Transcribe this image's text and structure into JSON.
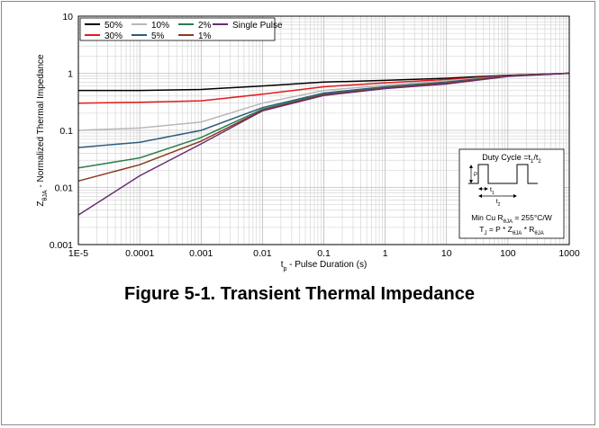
{
  "caption": "Figure 5-1. Transient Thermal Impedance",
  "chart_data": {
    "type": "line",
    "xscale": "log",
    "yscale": "log",
    "xlim": [
      1e-05,
      1000
    ],
    "ylim": [
      0.001,
      10
    ],
    "grid": true,
    "xlabel": {
      "main": "t",
      "sub": "p",
      "rest": " - Pulse Duration (s)"
    },
    "ylabel": {
      "main": "Z",
      "sub": "θJA",
      "rest": " - Normalized Thermal Impedance"
    },
    "x_ticks": [
      {
        "value": 1e-05,
        "label": "1E-5"
      },
      {
        "value": 0.0001,
        "label": "0.0001"
      },
      {
        "value": 0.001,
        "label": "0.001"
      },
      {
        "value": 0.01,
        "label": "0.01"
      },
      {
        "value": 0.1,
        "label": "0.1"
      },
      {
        "value": 1,
        "label": "1"
      },
      {
        "value": 10,
        "label": "10"
      },
      {
        "value": 100,
        "label": "100"
      },
      {
        "value": 1000,
        "label": "1000"
      }
    ],
    "y_ticks": [
      {
        "value": 10,
        "label": "10"
      },
      {
        "value": 1,
        "label": "1"
      },
      {
        "value": 0.1,
        "label": "0.1"
      },
      {
        "value": 0.01,
        "label": "0.01"
      },
      {
        "value": 0.001,
        "label": "0.001"
      }
    ],
    "legend_position": "top-left",
    "series": [
      {
        "name": "50%",
        "color": "#000000",
        "x": [
          1e-05,
          0.0001,
          0.001,
          0.01,
          0.1,
          1,
          10,
          100,
          1000
        ],
        "y": [
          0.5,
          0.5,
          0.52,
          0.6,
          0.7,
          0.75,
          0.82,
          0.92,
          1.0
        ]
      },
      {
        "name": "30%",
        "color": "#e41a1c",
        "x": [
          1e-05,
          0.0001,
          0.001,
          0.01,
          0.1,
          1,
          10,
          100,
          1000
        ],
        "y": [
          0.3,
          0.31,
          0.33,
          0.43,
          0.58,
          0.68,
          0.78,
          0.9,
          1.0
        ]
      },
      {
        "name": "10%",
        "color": "#b8b8b8",
        "x": [
          1e-05,
          0.0001,
          0.001,
          0.01,
          0.1,
          1,
          10,
          100,
          1000
        ],
        "y": [
          0.1,
          0.11,
          0.14,
          0.3,
          0.5,
          0.62,
          0.74,
          0.9,
          1.0
        ]
      },
      {
        "name": "5%",
        "color": "#2b5d7c",
        "x": [
          1e-05,
          0.0001,
          0.001,
          0.01,
          0.1,
          1,
          10,
          100,
          1000
        ],
        "y": [
          0.05,
          0.062,
          0.1,
          0.25,
          0.45,
          0.58,
          0.7,
          0.9,
          1.0
        ]
      },
      {
        "name": "2%",
        "color": "#2e7d4f",
        "x": [
          1e-05,
          0.0001,
          0.001,
          0.01,
          0.1,
          1,
          10,
          100,
          1000
        ],
        "y": [
          0.022,
          0.033,
          0.075,
          0.235,
          0.43,
          0.56,
          0.68,
          0.9,
          1.0
        ]
      },
      {
        "name": "1%",
        "color": "#8b3a1e",
        "x": [
          1e-05,
          0.0001,
          0.001,
          0.01,
          0.1,
          1,
          10,
          100,
          1000
        ],
        "y": [
          0.013,
          0.025,
          0.065,
          0.225,
          0.42,
          0.55,
          0.67,
          0.9,
          1.0
        ]
      },
      {
        "name": "Single Pulse",
        "color": "#6a2c70",
        "x": [
          1e-05,
          0.0001,
          0.001,
          0.01,
          0.1,
          1,
          10,
          100,
          1000
        ],
        "y": [
          0.0033,
          0.016,
          0.058,
          0.22,
          0.41,
          0.54,
          0.65,
          0.88,
          1.0
        ]
      }
    ],
    "inset": {
      "duty_cycle": {
        "main": "Duty Cycle =t",
        "s1": "1",
        "mid": "/t",
        "s2": "2"
      },
      "p_label": "P",
      "t1": "t1",
      "t2": "t2",
      "line1": {
        "pre": "Min Cu R",
        "sub": "θJA",
        "post": " = 255°C/W"
      },
      "line2": {
        "pre": "T",
        "s1": "J",
        "mid1": " = P * Z",
        "s2": "θJA",
        "mid2": " * R",
        "s3": "θJA"
      }
    }
  }
}
